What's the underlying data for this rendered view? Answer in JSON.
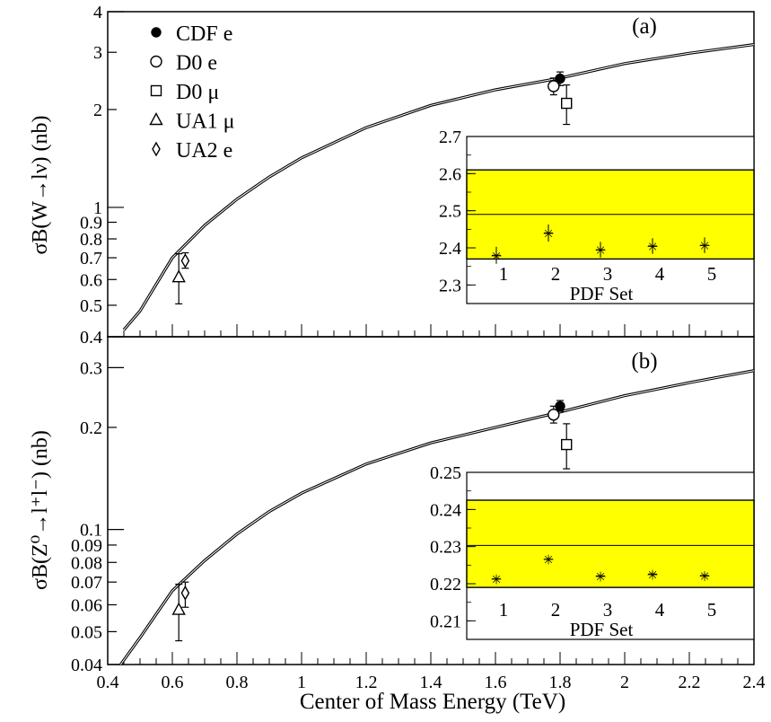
{
  "x_axis": {
    "label": "Center of Mass Energy (TeV)",
    "range": [
      0.4,
      2.4
    ],
    "ticks": [
      "0.4",
      "0.6",
      "0.8",
      "1",
      "1.2",
      "1.4",
      "1.6",
      "1.8",
      "2",
      "2.2",
      "2.4"
    ]
  },
  "chart_data": [
    {
      "type": "line",
      "panel_label": "(a)",
      "ylabel": "σB(W→lν) (nb)",
      "xlabel": "Center of Mass Energy (TeV)",
      "xlim": [
        0.4,
        2.4
      ],
      "ylim": [
        0.4,
        4
      ],
      "yscale": "log",
      "yticks": [
        "0.4",
        "0.5",
        "0.6",
        "0.7",
        "0.8",
        "0.9",
        "1",
        "2",
        "3",
        "4"
      ],
      "theory_curve": {
        "x": [
          0.45,
          0.5,
          0.6,
          0.7,
          0.8,
          0.9,
          1.0,
          1.2,
          1.4,
          1.6,
          1.8,
          2.0,
          2.2,
          2.4
        ],
        "y": [
          0.42,
          0.48,
          0.7,
          0.88,
          1.06,
          1.24,
          1.42,
          1.76,
          2.06,
          2.3,
          2.5,
          2.77,
          2.98,
          3.17
        ]
      },
      "legend": {
        "placement": "top-left",
        "entries": [
          {
            "label": "CDF e",
            "marker": "filled-circle"
          },
          {
            "label": "D0 e",
            "marker": "open-circle"
          },
          {
            "label": "D0 μ",
            "marker": "open-square"
          },
          {
            "label": "UA1 μ",
            "marker": "open-triangle"
          },
          {
            "label": "UA2 e",
            "marker": "open-diamond"
          }
        ]
      },
      "measurements": [
        {
          "name": "CDF e",
          "marker": "filled-circle",
          "x": 1.8,
          "y": 2.49,
          "lo": 2.37,
          "hi": 2.61
        },
        {
          "name": "D0 e",
          "marker": "open-circle",
          "x": 1.78,
          "y": 2.36,
          "lo": 2.22,
          "hi": 2.5
        },
        {
          "name": "D0 μ",
          "marker": "open-square",
          "x": 1.82,
          "y": 2.09,
          "lo": 1.8,
          "hi": 2.38
        },
        {
          "name": "UA1 μ",
          "marker": "open-triangle",
          "x": 0.62,
          "y": 0.61,
          "lo": 0.505,
          "hi": 0.72
        },
        {
          "name": "UA2 e",
          "marker": "open-diamond",
          "x": 0.64,
          "y": 0.685,
          "lo": 0.65,
          "hi": 0.725
        }
      ],
      "inset": {
        "xlabel": "PDF Set",
        "ylim": [
          2.25,
          2.7
        ],
        "yticks": [
          "2.3",
          "2.4",
          "2.5",
          "2.6",
          "2.7"
        ],
        "xticks": [
          "1",
          "2",
          "3",
          "4",
          "5"
        ],
        "band": {
          "lo": 2.37,
          "hi": 2.61,
          "center": 2.49,
          "color": "#ffff00"
        },
        "points": [
          {
            "x": 1,
            "y": 2.38,
            "err": 0.023
          },
          {
            "x": 2,
            "y": 2.44,
            "err": 0.023
          },
          {
            "x": 3,
            "y": 2.395,
            "err": 0.021
          },
          {
            "x": 4,
            "y": 2.405,
            "err": 0.021
          },
          {
            "x": 5,
            "y": 2.407,
            "err": 0.021
          }
        ]
      }
    },
    {
      "type": "line",
      "panel_label": "(b)",
      "ylabel": "σB(Z⁰→l⁺l⁻) (nb)",
      "xlabel": "Center of Mass Energy (TeV)",
      "xlim": [
        0.4,
        2.4
      ],
      "ylim": [
        0.04,
        0.37
      ],
      "yscale": "log",
      "yticks": [
        "0.04",
        "0.05",
        "0.06",
        "0.07",
        "0.08",
        "0.09",
        "0.1",
        "0.2",
        "0.3"
      ],
      "theory_curve": {
        "x": [
          0.44,
          0.5,
          0.6,
          0.7,
          0.8,
          0.9,
          1.0,
          1.2,
          1.4,
          1.6,
          1.8,
          2.0,
          2.2,
          2.4
        ],
        "y": [
          0.04,
          0.048,
          0.066,
          0.081,
          0.097,
          0.113,
          0.128,
          0.156,
          0.18,
          0.2,
          0.222,
          0.248,
          0.271,
          0.294
        ]
      },
      "measurements": [
        {
          "name": "CDF e",
          "marker": "filled-circle",
          "x": 1.8,
          "y": 0.231,
          "lo": 0.223,
          "hi": 0.24
        },
        {
          "name": "D0 e",
          "marker": "open-circle",
          "x": 1.78,
          "y": 0.218,
          "lo": 0.206,
          "hi": 0.231
        },
        {
          "name": "D0 μ",
          "marker": "open-square",
          "x": 1.82,
          "y": 0.178,
          "lo": 0.151,
          "hi": 0.205
        },
        {
          "name": "UA1 μ",
          "marker": "open-triangle",
          "x": 0.62,
          "y": 0.058,
          "lo": 0.047,
          "hi": 0.069
        },
        {
          "name": "UA2 e",
          "marker": "open-diamond",
          "x": 0.64,
          "y": 0.065,
          "lo": 0.059,
          "hi": 0.07
        }
      ],
      "inset": {
        "xlabel": "PDF Set",
        "ylim": [
          0.205,
          0.25
        ],
        "yticks": [
          "0.21",
          "0.22",
          "0.23",
          "0.24",
          "0.25"
        ],
        "xticks": [
          "1",
          "2",
          "3",
          "4",
          "5"
        ],
        "band": {
          "lo": 0.219,
          "hi": 0.2425,
          "center": 0.2303,
          "color": "#ffff00"
        },
        "points": [
          {
            "x": 1,
            "y": 0.2213,
            "err": 0.0006
          },
          {
            "x": 2,
            "y": 0.2266,
            "err": 0.0006
          },
          {
            "x": 3,
            "y": 0.2221,
            "err": 0.0006
          },
          {
            "x": 4,
            "y": 0.2226,
            "err": 0.0006
          },
          {
            "x": 5,
            "y": 0.2222,
            "err": 0.0006
          }
        ]
      }
    }
  ]
}
